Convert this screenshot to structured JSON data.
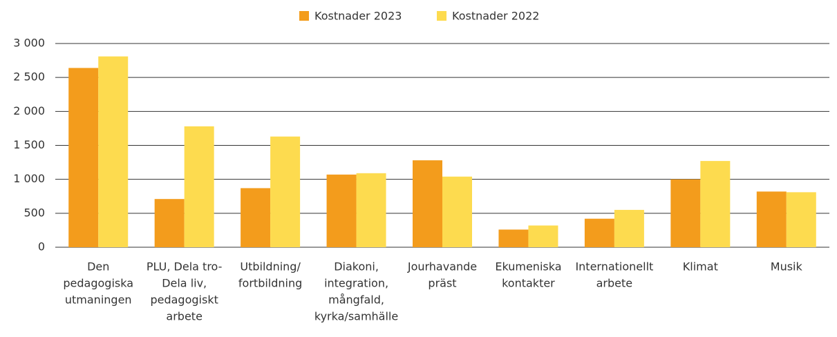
{
  "chart_data": {
    "type": "bar",
    "categories": [
      [
        "Den",
        "pedagogiska",
        "utmaningen"
      ],
      [
        "PLU, Dela tro-",
        "Dela liv,",
        "pedagogiskt",
        "arbete"
      ],
      [
        "Utbildning/",
        "fortbildning"
      ],
      [
        "Diakoni,",
        "integration,",
        "mångfald,",
        "kyrka/samhälle"
      ],
      [
        "Jourhavande",
        "präst"
      ],
      [
        "Ekumeniska",
        "kontakter"
      ],
      [
        "Internationellt",
        "arbete"
      ],
      [
        "Klimat"
      ],
      [
        "Musik"
      ]
    ],
    "series": [
      {
        "name": "Kostnader 2023",
        "color": "#f39c1c",
        "values": [
          2640,
          710,
          870,
          1070,
          1280,
          260,
          420,
          1000,
          820
        ]
      },
      {
        "name": "Kostnader 2022",
        "color": "#fddb4f",
        "values": [
          2810,
          1780,
          1630,
          1090,
          1040,
          320,
          550,
          1270,
          810
        ]
      }
    ],
    "ylim": [
      0,
      3000
    ],
    "yticks": [
      0,
      500,
      {
        "value": 1000,
        "label": "1 000"
      },
      {
        "value": 1500,
        "label": "1 500"
      },
      {
        "value": 2000,
        "label": "2 000"
      },
      {
        "value": 2500,
        "label": "2 500"
      },
      {
        "value": 3000,
        "label": "3 000"
      }
    ],
    "grid": true,
    "legend": "top"
  }
}
